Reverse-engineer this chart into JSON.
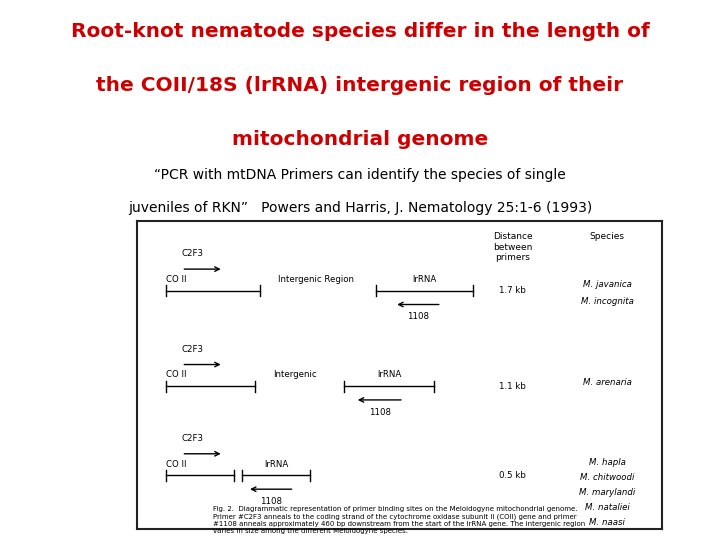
{
  "title_line1": "Root-knot nematode species differ in the length of",
  "title_line2": "the COII/18S (lrRNA) intergenic region of their",
  "title_line3": "mitochondrial genome",
  "subtitle_line1": "“PCR with mtDNA Primers can identify the species of single",
  "subtitle_line2": "juveniles of RKN”   Powers and Harris, J. Nematology 25:1-6 (1993)",
  "title_color": "#cc0000",
  "subtitle_color": "#000000",
  "bg_color": "#ffffff",
  "box_bg": "#f8f8f4",
  "box_border": "#222222",
  "title_fontsize": 14.5,
  "subtitle_fontsize": 10,
  "diagram": {
    "col_header_dist": "Distance\nbetween\nprimers",
    "col_header_species": "Species",
    "caption": "Fig. 2.  Diagrammatic representation of primer binding sites on the Meloidogyne mitochondrial genome.\nPrimer #C2F3 anneals to the coding strand of the cytochrome oxidase subunit II (COII) gene and primer\n#1108 anneals approximately 460 bp downstream from the start of the lrRNA gene. The intergenic region\nvaries in size among the different Meloidogyne species."
  }
}
